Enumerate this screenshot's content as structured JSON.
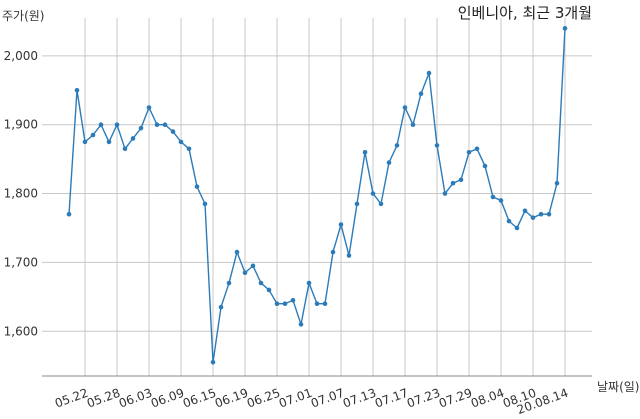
{
  "chart_data": {
    "type": "line",
    "title": "인베니아, 최근 3개월",
    "ylabel": "주가(원)",
    "xlabel": "날짜(일)",
    "ylim": [
      1535,
      2055
    ],
    "yticks": [
      1600,
      1700,
      1800,
      1900,
      2000
    ],
    "ytick_labels": [
      "1,600",
      "1,700",
      "1,800",
      "1,900",
      "2,000"
    ],
    "xtick_labels": [
      "05.22",
      "05.28",
      "06.03",
      "06.09",
      "06.15",
      "06.19",
      "06.25",
      "07.01",
      "07.07",
      "07.13",
      "07.17",
      "07.23",
      "07.29",
      "08.04",
      "08.10",
      "20.08.14"
    ],
    "xtick_index": [
      2,
      6,
      10,
      14,
      18,
      22,
      26,
      30,
      34,
      38,
      42,
      46,
      50,
      54,
      58,
      62
    ],
    "grid": true,
    "color": "#2b7bb9",
    "values": [
      1770,
      1950,
      1875,
      1885,
      1900,
      1875,
      1900,
      1865,
      1880,
      1895,
      1925,
      1900,
      1900,
      1890,
      1875,
      1865,
      1810,
      1785,
      1555,
      1635,
      1670,
      1715,
      1685,
      1695,
      1670,
      1660,
      1640,
      1640,
      1645,
      1610,
      1670,
      1640,
      1640,
      1715,
      1755,
      1710,
      1785,
      1860,
      1800,
      1785,
      1845,
      1870,
      1925,
      1900,
      1945,
      1975,
      1870,
      1800,
      1815,
      1820,
      1860,
      1865,
      1840,
      1795,
      1790,
      1760,
      1750,
      1775,
      1765,
      1770,
      1770,
      1815,
      2040
    ]
  }
}
